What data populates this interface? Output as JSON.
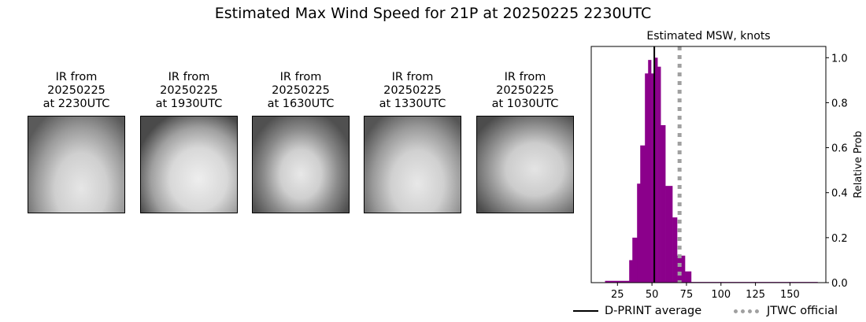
{
  "title": "Estimated Max Wind Speed for 21P at 20250225 2230UTC",
  "panels": [
    {
      "line1": "IR from",
      "line2": "20250225",
      "line3": "at 2230UTC"
    },
    {
      "line1": "IR from",
      "line2": "20250225",
      "line3": "at 1930UTC"
    },
    {
      "line1": "IR from",
      "line2": "20250225",
      "line3": "at 1630UTC"
    },
    {
      "line1": "IR from",
      "line2": "20250225",
      "line3": "at 1330UTC"
    },
    {
      "line1": "IR from",
      "line2": "20250225",
      "line3": "at 1030UTC"
    }
  ],
  "chart_data": {
    "type": "bar",
    "title": "Estimated MSW, knots",
    "xlabel": "",
    "ylabel": "Relative Prob",
    "xlim": [
      6,
      176
    ],
    "ylim": [
      0,
      1.05
    ],
    "xticks": [
      25,
      50,
      75,
      100,
      125,
      150
    ],
    "yticks": [
      "0.0",
      "0.2",
      "0.4",
      "0.6",
      "0.8",
      "1.0"
    ],
    "yaxis_side": "right",
    "grid": false,
    "bar_color": "#8b008b",
    "bins": [
      {
        "left": 16,
        "right": 33.5,
        "value": 0.008
      },
      {
        "left": 33.5,
        "right": 35.8,
        "value": 0.1
      },
      {
        "left": 35.8,
        "right": 39.2,
        "value": 0.2
      },
      {
        "left": 39.2,
        "right": 41.5,
        "value": 0.44
      },
      {
        "left": 41.5,
        "right": 44.9,
        "value": 0.61
      },
      {
        "left": 44.9,
        "right": 47.2,
        "value": 0.93
      },
      {
        "left": 47.2,
        "right": 49.4,
        "value": 0.99
      },
      {
        "left": 49.4,
        "right": 51.7,
        "value": 0.93
      },
      {
        "left": 51.7,
        "right": 54.0,
        "value": 1.0
      },
      {
        "left": 54.0,
        "right": 56.3,
        "value": 0.96
      },
      {
        "left": 56.3,
        "right": 59.7,
        "value": 0.7
      },
      {
        "left": 59.7,
        "right": 64.8,
        "value": 0.43
      },
      {
        "left": 64.8,
        "right": 68.2,
        "value": 0.29
      },
      {
        "left": 68.2,
        "right": 73.9,
        "value": 0.12
      },
      {
        "left": 73.9,
        "right": 78.4,
        "value": 0.05
      },
      {
        "left": 78.4,
        "right": 170,
        "value": 0.003
      }
    ],
    "dprint_average": 51.7,
    "jtwc_official": 70,
    "legend": {
      "placement": "bottom",
      "dprint_label": "D-PRINT average",
      "jtwc_label": "JTWC official",
      "dprint_color": "#000000",
      "jtwc_color": "#a0a0a0"
    }
  }
}
